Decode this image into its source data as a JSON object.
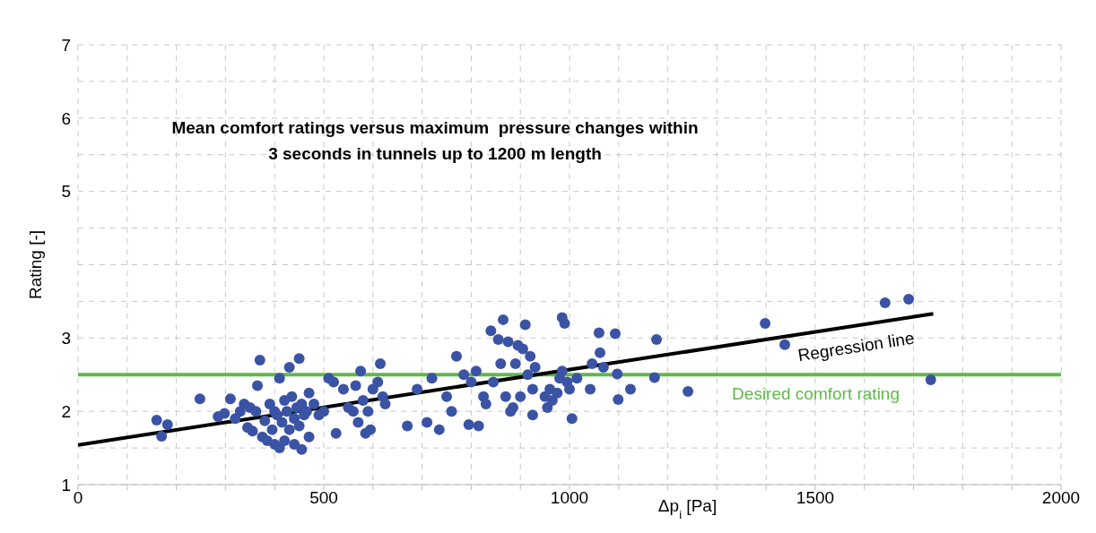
{
  "chart_data": {
    "type": "scatter",
    "title": "Mean comfort ratings versus maximum  pressure changes within\n3 seconds in tunnels up to 1200 m length",
    "xlabel": "Δp$_{i}$ [Pa]",
    "ylabel": "Rating [-]",
    "xlim": [
      0,
      2000
    ],
    "xticks": [
      0,
      {
        "value": 100,
        "label": null
      },
      {
        "value": 200,
        "label": null
      },
      {
        "value": 300,
        "label": null
      },
      {
        "value": 400,
        "label": null
      },
      500,
      {
        "value": 600,
        "label": null
      },
      {
        "value": 700,
        "label": null
      },
      {
        "value": 800,
        "label": null
      },
      {
        "value": 900,
        "label": null
      },
      1000,
      {
        "value": 1100,
        "label": null
      },
      {
        "value": 1200,
        "label": null
      },
      {
        "value": 1300,
        "label": null
      },
      {
        "value": 1400,
        "label": null
      },
      1500,
      {
        "value": 1600,
        "label": null
      },
      {
        "value": 1700,
        "label": null
      },
      {
        "value": 1800,
        "label": null
      },
      {
        "value": 1900,
        "label": null
      },
      2000
    ],
    "ylim": [
      1,
      7
    ],
    "yticks": [
      1,
      {
        "value": 1.5,
        "label": null
      },
      2,
      {
        "value": 2.5,
        "label": null
      },
      3,
      {
        "value": 3.5,
        "label": null
      },
      {
        "value": 4,
        "label": null
      },
      {
        "value": 4.5,
        "label": null
      },
      5,
      {
        "value": 5.5,
        "label": null
      },
      6,
      {
        "value": 6.5,
        "label": null
      },
      7
    ],
    "grid": true,
    "legend": false,
    "marker": "circle",
    "series": [
      {
        "color": "#3a53a4",
        "x": [
          160,
          182,
          170,
          248,
          285,
          298,
          310,
          320,
          330,
          338,
          345,
          350,
          355,
          362,
          365,
          370,
          375,
          380,
          385,
          390,
          395,
          400,
          400,
          405,
          410,
          410,
          415,
          420,
          420,
          425,
          430,
          430,
          435,
          440,
          440,
          445,
          450,
          450,
          455,
          455,
          460,
          465,
          470,
          470,
          480,
          490,
          500,
          510,
          520,
          525,
          540,
          550,
          560,
          565,
          570,
          575,
          580,
          585,
          590,
          595,
          600,
          610,
          615,
          620,
          625,
          670,
          690,
          710,
          720,
          735,
          750,
          760,
          770,
          785,
          795,
          800,
          810,
          815,
          825,
          830,
          840,
          845,
          855,
          860,
          865,
          870,
          875,
          880,
          885,
          890,
          895,
          900,
          905,
          910,
          915,
          920,
          925,
          925,
          930,
          950,
          955,
          960,
          965,
          975,
          980,
          985,
          985,
          990,
          995,
          1000,
          1005,
          1015,
          1042,
          1046,
          1062,
          1069,
          1060,
          1093,
          1097,
          1099,
          1124,
          1173,
          1177,
          1241,
          1398,
          1438,
          1642,
          1690,
          1735
        ],
        "values": [
          1.88,
          1.82,
          1.66,
          2.17,
          1.93,
          1.97,
          2.17,
          1.9,
          2.0,
          2.1,
          1.78,
          2.05,
          1.73,
          2.0,
          2.35,
          2.7,
          1.65,
          1.87,
          1.6,
          2.1,
          1.75,
          2.0,
          1.55,
          1.95,
          2.45,
          1.5,
          1.85,
          2.15,
          1.6,
          2.0,
          2.6,
          1.75,
          2.2,
          1.9,
          1.55,
          2.05,
          2.72,
          1.8,
          2.1,
          1.48,
          1.95,
          2.0,
          1.65,
          2.25,
          2.1,
          1.95,
          2.0,
          2.45,
          2.4,
          1.7,
          2.3,
          2.05,
          2.0,
          2.35,
          1.85,
          2.55,
          2.15,
          1.7,
          2.0,
          1.75,
          2.3,
          2.4,
          2.65,
          2.2,
          2.1,
          1.8,
          2.3,
          1.85,
          2.45,
          1.75,
          2.2,
          2.0,
          2.75,
          2.5,
          1.82,
          2.4,
          2.55,
          1.8,
          2.2,
          2.1,
          3.1,
          2.4,
          2.98,
          2.65,
          3.25,
          2.2,
          2.95,
          2.0,
          2.05,
          2.65,
          2.9,
          2.2,
          2.85,
          3.18,
          2.5,
          2.75,
          2.3,
          1.95,
          2.6,
          2.2,
          2.05,
          2.3,
          2.15,
          2.25,
          2.45,
          2.55,
          3.28,
          3.2,
          2.4,
          2.3,
          1.9,
          2.45,
          2.3,
          2.65,
          2.8,
          2.6,
          3.07,
          3.06,
          2.51,
          2.16,
          2.3,
          2.46,
          2.98,
          2.27,
          3.2,
          2.91,
          3.48,
          3.53,
          2.43
        ]
      },
      {
        "type": "line",
        "name": "Regression line",
        "marker": "none",
        "color": "#000000",
        "x": [
          0,
          1740
        ],
        "values": [
          1.54,
          3.33
        ]
      }
    ],
    "ref_lines": [
      {
        "axis": "y",
        "value": 2.5,
        "label": "Desired comfort rating",
        "color": "#5dbb46"
      }
    ]
  }
}
